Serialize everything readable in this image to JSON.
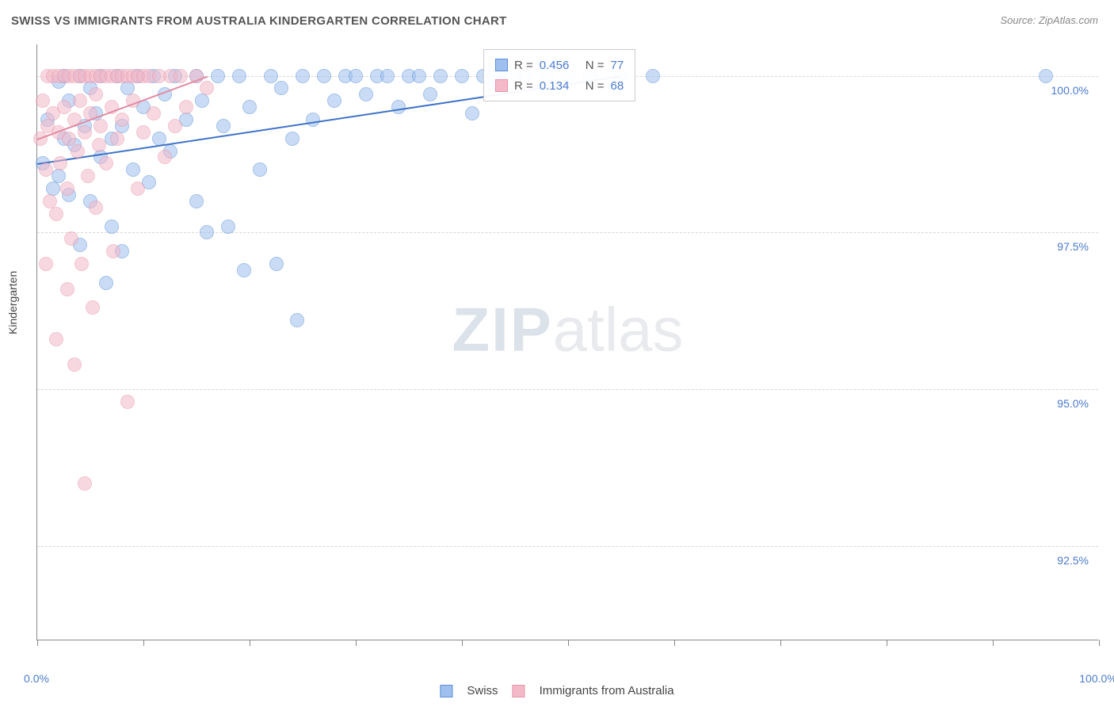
{
  "title": "SWISS VS IMMIGRANTS FROM AUSTRALIA KINDERGARTEN CORRELATION CHART",
  "source": "Source: ZipAtlas.com",
  "watermark": {
    "part1": "ZIP",
    "part2": "atlas"
  },
  "y_axis_label": "Kindergarten",
  "chart": {
    "type": "scatter",
    "xlim": [
      0,
      100
    ],
    "ylim": [
      91.0,
      100.5
    ],
    "x_ticks": [
      0,
      10,
      20,
      30,
      40,
      50,
      60,
      70,
      80,
      90,
      100
    ],
    "x_tick_labels_shown": {
      "0": "0.0%",
      "100": "100.0%"
    },
    "y_gridlines": [
      92.5,
      95.0,
      97.5,
      100.0
    ],
    "y_tick_labels": {
      "92.5": "92.5%",
      "95.0": "95.0%",
      "97.5": "97.5%",
      "100.0": "100.0%"
    },
    "background_color": "#ffffff",
    "grid_color": "#d8d8d8",
    "axis_color": "#888888",
    "tick_label_color": "#4a7bd0",
    "marker_radius": 9,
    "marker_opacity": 0.55,
    "series": [
      {
        "name": "Swiss",
        "label": "Swiss",
        "color_fill": "#9fc0ee",
        "color_stroke": "#5b8fd6",
        "R": "0.456",
        "N": "77",
        "trend": {
          "x1": 0,
          "y1": 98.6,
          "x2": 55,
          "y2": 100.0,
          "color": "#3f73c7",
          "width": 2
        },
        "points": [
          [
            0.5,
            98.6
          ],
          [
            1,
            99.3
          ],
          [
            1.5,
            98.2
          ],
          [
            2,
            99.9
          ],
          [
            2,
            98.4
          ],
          [
            2.5,
            100
          ],
          [
            2.5,
            99.0
          ],
          [
            3,
            98.1
          ],
          [
            3,
            99.6
          ],
          [
            3.5,
            98.9
          ],
          [
            4,
            100
          ],
          [
            4,
            97.3
          ],
          [
            4.5,
            99.2
          ],
          [
            5,
            99.8
          ],
          [
            5,
            98.0
          ],
          [
            5.5,
            99.4
          ],
          [
            6,
            100
          ],
          [
            6,
            98.7
          ],
          [
            6.5,
            96.7
          ],
          [
            7,
            99.0
          ],
          [
            7,
            97.6
          ],
          [
            7.5,
            100
          ],
          [
            8,
            99.2
          ],
          [
            8,
            97.2
          ],
          [
            8.5,
            99.8
          ],
          [
            9,
            98.5
          ],
          [
            9.5,
            100
          ],
          [
            10,
            99.5
          ],
          [
            10.5,
            98.3
          ],
          [
            11,
            100
          ],
          [
            11.5,
            99.0
          ],
          [
            12,
            99.7
          ],
          [
            12.5,
            98.8
          ],
          [
            13,
            100
          ],
          [
            14,
            99.3
          ],
          [
            15,
            100
          ],
          [
            15,
            98.0
          ],
          [
            15.5,
            99.6
          ],
          [
            16,
            97.5
          ],
          [
            17,
            100
          ],
          [
            17.5,
            99.2
          ],
          [
            18,
            97.6
          ],
          [
            19,
            100
          ],
          [
            19.5,
            96.9
          ],
          [
            20,
            99.5
          ],
          [
            21,
            98.5
          ],
          [
            22,
            100
          ],
          [
            22.5,
            97.0
          ],
          [
            23,
            99.8
          ],
          [
            24,
            99.0
          ],
          [
            24.5,
            96.1
          ],
          [
            25,
            100
          ],
          [
            26,
            99.3
          ],
          [
            27,
            100
          ],
          [
            28,
            99.6
          ],
          [
            29,
            100
          ],
          [
            30,
            100
          ],
          [
            31,
            99.7
          ],
          [
            32,
            100
          ],
          [
            33,
            100
          ],
          [
            34,
            99.5
          ],
          [
            35,
            100
          ],
          [
            36,
            100
          ],
          [
            37,
            99.7
          ],
          [
            38,
            100
          ],
          [
            40,
            100
          ],
          [
            41,
            99.4
          ],
          [
            42,
            100
          ],
          [
            43,
            100
          ],
          [
            45,
            100
          ],
          [
            46,
            100
          ],
          [
            48,
            100
          ],
          [
            50,
            100
          ],
          [
            52,
            100
          ],
          [
            55,
            100
          ],
          [
            58,
            100
          ],
          [
            95,
            100
          ]
        ]
      },
      {
        "name": "Immigrants from Australia",
        "label": "Immigrants from Australia",
        "color_fill": "#f4b9c8",
        "color_stroke": "#e695ab",
        "R": "0.134",
        "N": "68",
        "trend": {
          "x1": 0,
          "y1": 99.0,
          "x2": 16,
          "y2": 100.0,
          "color": "#e38ba3",
          "width": 2
        },
        "points": [
          [
            0.3,
            99.0
          ],
          [
            0.5,
            99.6
          ],
          [
            0.8,
            98.5
          ],
          [
            1,
            100
          ],
          [
            1,
            99.2
          ],
          [
            1.2,
            98.0
          ],
          [
            1.5,
            100
          ],
          [
            1.5,
            99.4
          ],
          [
            1.8,
            97.8
          ],
          [
            2,
            100
          ],
          [
            2,
            99.1
          ],
          [
            2.2,
            98.6
          ],
          [
            2.5,
            100
          ],
          [
            2.5,
            99.5
          ],
          [
            2.8,
            98.2
          ],
          [
            3,
            100
          ],
          [
            3,
            99.0
          ],
          [
            3.2,
            97.4
          ],
          [
            3.5,
            100
          ],
          [
            3.5,
            99.3
          ],
          [
            3.8,
            98.8
          ],
          [
            4,
            100
          ],
          [
            4,
            99.6
          ],
          [
            4.2,
            97.0
          ],
          [
            4.5,
            100
          ],
          [
            4.5,
            99.1
          ],
          [
            4.8,
            98.4
          ],
          [
            5,
            100
          ],
          [
            5,
            99.4
          ],
          [
            5.2,
            96.3
          ],
          [
            5.5,
            100
          ],
          [
            5.5,
            99.7
          ],
          [
            5.8,
            98.9
          ],
          [
            6,
            100
          ],
          [
            6,
            99.2
          ],
          [
            6.5,
            100
          ],
          [
            6.5,
            98.6
          ],
          [
            7,
            100
          ],
          [
            7,
            99.5
          ],
          [
            7.2,
            97.2
          ],
          [
            7.5,
            100
          ],
          [
            7.5,
            99.0
          ],
          [
            8,
            100
          ],
          [
            8,
            99.3
          ],
          [
            8.5,
            100
          ],
          [
            8.5,
            94.8
          ],
          [
            9,
            100
          ],
          [
            9,
            99.6
          ],
          [
            9.5,
            100
          ],
          [
            9.5,
            98.2
          ],
          [
            10,
            100
          ],
          [
            10,
            99.1
          ],
          [
            10.5,
            100
          ],
          [
            11,
            99.4
          ],
          [
            11.5,
            100
          ],
          [
            12,
            98.7
          ],
          [
            12.5,
            100
          ],
          [
            13,
            99.2
          ],
          [
            13.5,
            100
          ],
          [
            14,
            99.5
          ],
          [
            15,
            100
          ],
          [
            16,
            99.8
          ],
          [
            4.5,
            93.5
          ],
          [
            3.5,
            95.4
          ],
          [
            2.8,
            96.6
          ],
          [
            1.8,
            95.8
          ],
          [
            0.8,
            97.0
          ],
          [
            5.5,
            97.9
          ]
        ]
      }
    ]
  },
  "stats_legend": {
    "r_label": "R =",
    "n_label": "N ="
  },
  "bottom_legend": {
    "series1": "Swiss",
    "series2": "Immigrants from Australia"
  }
}
